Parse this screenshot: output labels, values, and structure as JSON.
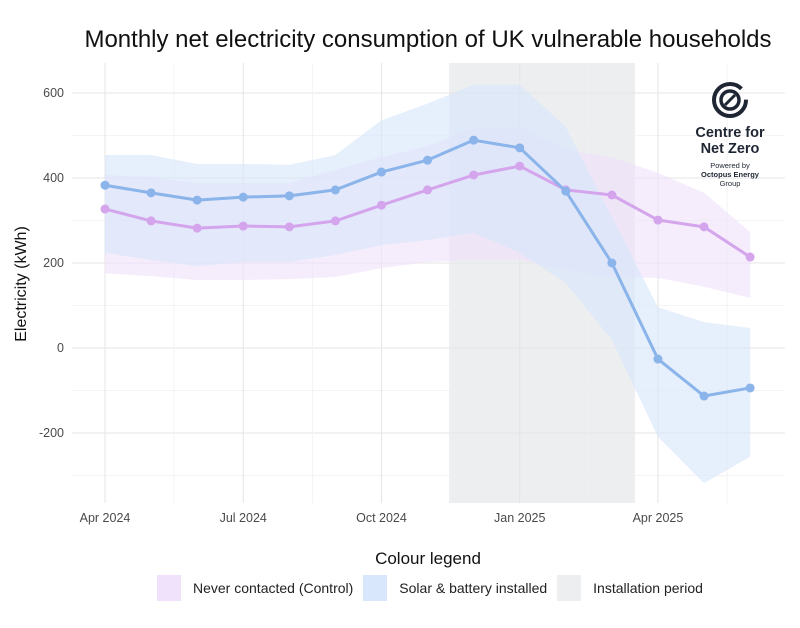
{
  "chart_data": {
    "type": "line",
    "title": "Monthly net electricity consumption of UK vulnerable households",
    "xlabel": "",
    "ylabel": "Electricity (kWh)",
    "x": [
      "2024-04",
      "2024-05",
      "2024-06",
      "2024-07",
      "2024-08",
      "2024-09",
      "2024-10",
      "2024-11",
      "2024-12",
      "2025-01",
      "2025-02",
      "2025-03",
      "2025-04",
      "2025-05",
      "2025-06"
    ],
    "x_ticks": [
      {
        "date": "2024-04",
        "label": "Apr 2024"
      },
      {
        "date": "2024-07",
        "label": "Jul 2024"
      },
      {
        "date": "2024-10",
        "label": "Oct 2024"
      },
      {
        "date": "2025-01",
        "label": "Jan 2025"
      },
      {
        "date": "2025-04",
        "label": "Apr 2025"
      }
    ],
    "y_ticks": [
      600,
      400,
      200,
      0,
      -200
    ],
    "ylim": [
      -370,
      670
    ],
    "grid": true,
    "legend_placement": "bottom",
    "legend_title": "Colour legend",
    "series": [
      {
        "name": "Never contacted (Control)",
        "color": "#d4a5ec",
        "band_color": "#efe2fa",
        "values": [
          327,
          299,
          282,
          287,
          285,
          299,
          336,
          372,
          407,
          428,
          372,
          360,
          301,
          285,
          214
        ],
        "upper": [
          407,
          402,
          388,
          388,
          388,
          419,
          449,
          475,
          518,
          520,
          466,
          449,
          412,
          365,
          273
        ],
        "lower": [
          176,
          169,
          160,
          160,
          162,
          167,
          188,
          202,
          207,
          207,
          184,
          167,
          165,
          144,
          118
        ]
      },
      {
        "name": "Solar & battery installed",
        "color": "#8ab4ea",
        "band_color": "#d8e7fb",
        "values": [
          383,
          365,
          348,
          355,
          358,
          372,
          414,
          442,
          489,
          471,
          369,
          200,
          -26,
          -113,
          -94
        ],
        "upper": [
          454,
          454,
          433,
          433,
          431,
          454,
          536,
          575,
          619,
          619,
          520,
          308,
          96,
          61,
          47
        ],
        "lower": [
          224,
          207,
          193,
          202,
          202,
          219,
          242,
          254,
          271,
          224,
          153,
          19,
          -209,
          -318,
          -256
        ]
      }
    ],
    "shaded_regions": [
      {
        "name": "Installation period",
        "start": "2024-11-15",
        "end": "2025-03-16",
        "color": "#eceef0"
      }
    ]
  },
  "logo": {
    "line1": "Centre for",
    "line2": "Net Zero",
    "powered": "Powered by",
    "company1": "Octopus Energy",
    "company2": "Group"
  }
}
